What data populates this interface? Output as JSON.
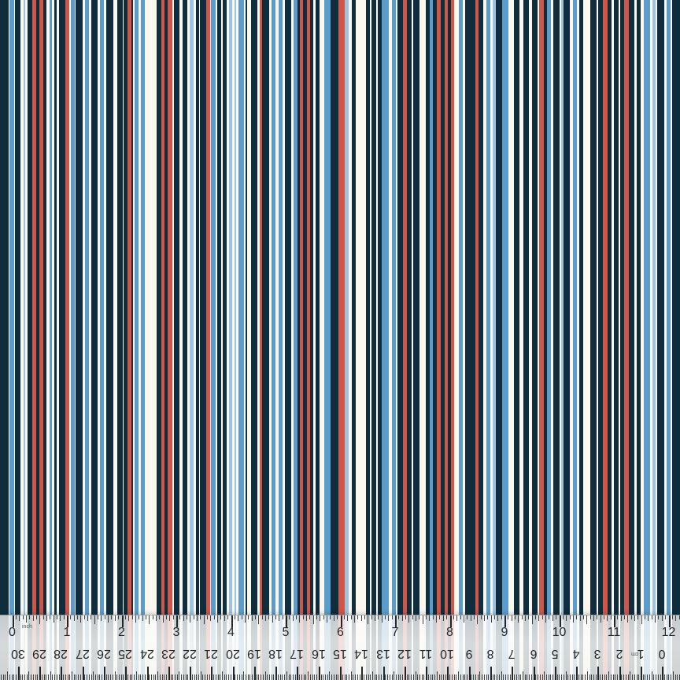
{
  "pattern": {
    "colors": {
      "n": "#0f2d3d",
      "b": "#5b9ccd",
      "l": "#9dc3e0",
      "r": "#d05648",
      "w": "#faf7ef"
    },
    "stripes": [
      [
        "n",
        11
      ],
      [
        "w",
        1
      ],
      [
        "b",
        6
      ],
      [
        "w",
        1
      ],
      [
        "n",
        7
      ],
      [
        "w",
        4
      ],
      [
        "l",
        2
      ],
      [
        "w",
        3
      ],
      [
        "n",
        6
      ],
      [
        "r",
        5
      ],
      [
        "n",
        4
      ],
      [
        "r",
        5
      ],
      [
        "n",
        4
      ],
      [
        "w",
        4
      ],
      [
        "b",
        3
      ],
      [
        "w",
        3
      ],
      [
        "n",
        3
      ],
      [
        "w",
        3
      ],
      [
        "n",
        8
      ],
      [
        "r",
        5
      ],
      [
        "w",
        2
      ],
      [
        "b",
        5
      ],
      [
        "w",
        1
      ],
      [
        "n",
        9
      ],
      [
        "w",
        3
      ],
      [
        "b",
        5
      ],
      [
        "w",
        3
      ],
      [
        "n",
        8
      ],
      [
        "w",
        3
      ],
      [
        "b",
        5
      ],
      [
        "w",
        3
      ],
      [
        "n",
        9
      ],
      [
        "w",
        5
      ],
      [
        "n",
        7
      ],
      [
        "w",
        1
      ],
      [
        "n",
        5
      ],
      [
        "r",
        5
      ],
      [
        "n",
        2
      ],
      [
        "w",
        2
      ],
      [
        "b",
        5
      ],
      [
        "w",
        3
      ],
      [
        "b",
        5
      ],
      [
        "w",
        15
      ],
      [
        "n",
        6
      ],
      [
        "r",
        4
      ],
      [
        "n",
        4
      ],
      [
        "r",
        6
      ],
      [
        "w",
        2
      ],
      [
        "n",
        7
      ],
      [
        "w",
        4
      ],
      [
        "n",
        6
      ],
      [
        "w",
        2
      ],
      [
        "w",
        1
      ],
      [
        "l",
        5
      ],
      [
        "w",
        3
      ],
      [
        "n",
        4
      ],
      [
        "w",
        1
      ],
      [
        "n",
        8
      ],
      [
        "r",
        5
      ],
      [
        "w",
        1
      ],
      [
        "b",
        6
      ],
      [
        "w",
        2
      ],
      [
        "n",
        5
      ],
      [
        "w",
        2
      ],
      [
        "n",
        5
      ],
      [
        "w",
        3
      ],
      [
        "l",
        4
      ],
      [
        "w",
        3
      ],
      [
        "l",
        2
      ],
      [
        "w",
        3
      ],
      [
        "b",
        7
      ],
      [
        "w",
        2
      ],
      [
        "n",
        2
      ],
      [
        "w",
        5
      ],
      [
        "n",
        8
      ],
      [
        "w",
        3
      ],
      [
        "r",
        3
      ],
      [
        "n",
        9
      ],
      [
        "w",
        3
      ],
      [
        "b",
        5
      ],
      [
        "w",
        4
      ],
      [
        "b",
        5
      ],
      [
        "w",
        1
      ],
      [
        "w",
        2
      ],
      [
        "n",
        8
      ],
      [
        "w",
        3
      ],
      [
        "b",
        5
      ],
      [
        "n",
        3
      ],
      [
        "r",
        4
      ],
      [
        "n",
        5
      ],
      [
        "r",
        4
      ],
      [
        "n",
        4
      ],
      [
        "w",
        3
      ],
      [
        "n",
        5
      ],
      [
        "w",
        6
      ],
      [
        "b",
        8
      ],
      [
        "n",
        10
      ],
      [
        "r",
        2
      ],
      [
        "r",
        6
      ],
      [
        "l",
        5
      ],
      [
        "w",
        4
      ],
      [
        "n",
        5
      ],
      [
        "w",
        13
      ],
      [
        "n",
        5
      ],
      [
        "w",
        2
      ],
      [
        "n",
        6
      ],
      [
        "w",
        2
      ],
      [
        "n",
        5
      ],
      [
        "b",
        9
      ],
      [
        "w",
        4
      ],
      [
        "b",
        5
      ],
      [
        "w",
        2
      ],
      [
        "n",
        7
      ],
      [
        "r",
        5
      ],
      [
        "n",
        6
      ],
      [
        "w",
        2
      ],
      [
        "n",
        3
      ],
      [
        "n",
        5
      ],
      [
        "w",
        8
      ],
      [
        "n",
        5
      ],
      [
        "b",
        4
      ],
      [
        "n",
        5
      ],
      [
        "r",
        5
      ],
      [
        "n",
        5
      ],
      [
        "r",
        4
      ],
      [
        "n",
        4
      ],
      [
        "r",
        4
      ],
      [
        "w",
        6
      ],
      [
        "b",
        5
      ],
      [
        "w",
        3
      ],
      [
        "n",
        9
      ],
      [
        "n",
        4
      ],
      [
        "r",
        4
      ],
      [
        "n",
        6
      ],
      [
        "w",
        4
      ],
      [
        "b",
        5
      ],
      [
        "w",
        3
      ],
      [
        "l",
        4
      ],
      [
        "n",
        8
      ],
      [
        "b",
        8
      ],
      [
        "w",
        7
      ],
      [
        "n",
        7
      ],
      [
        "w",
        5
      ],
      [
        "n",
        7
      ],
      [
        "w",
        4
      ],
      [
        "n",
        7
      ],
      [
        "w",
        2
      ],
      [
        "r",
        6
      ],
      [
        "n",
        4
      ],
      [
        "b",
        5
      ],
      [
        "w",
        3
      ],
      [
        "n",
        8
      ],
      [
        "w",
        2
      ],
      [
        "l",
        3
      ],
      [
        "n",
        8
      ],
      [
        "w",
        4
      ],
      [
        "b",
        5
      ],
      [
        "w",
        3
      ],
      [
        "n",
        5
      ],
      [
        "w",
        3
      ],
      [
        "w",
        6
      ],
      [
        "n",
        8
      ],
      [
        "w",
        2
      ],
      [
        "n",
        6
      ],
      [
        "r",
        6
      ],
      [
        "n",
        5
      ],
      [
        "w",
        3
      ],
      [
        "n",
        6
      ],
      [
        "w",
        2
      ],
      [
        "n",
        5
      ],
      [
        "r",
        6
      ],
      [
        "n",
        7
      ],
      [
        "w",
        3
      ],
      [
        "n",
        5
      ],
      [
        "w",
        4
      ],
      [
        "b",
        8
      ],
      [
        "w",
        3
      ],
      [
        "l",
        4
      ],
      [
        "w",
        2
      ],
      [
        "n",
        9
      ],
      [
        "w",
        3
      ],
      [
        "b",
        5
      ],
      [
        "w",
        2
      ],
      [
        "n",
        10
      ]
    ]
  },
  "ruler": {
    "inch_label": "inch",
    "cm_label": "cm",
    "inch_numbers": [
      "0",
      "1",
      "2",
      "3",
      "4",
      "5",
      "6",
      "7",
      "8",
      "9",
      "10",
      "11",
      "12"
    ],
    "cm_numbers": [
      "30",
      "29",
      "28",
      "27",
      "26",
      "25",
      "24",
      "23",
      "22",
      "21",
      "20",
      "19",
      "18",
      "17",
      "16",
      "15",
      "14",
      "13",
      "12",
      "11",
      "10",
      "9",
      "8",
      "7",
      "6",
      "5",
      "4",
      "3",
      "2",
      "1",
      "0"
    ],
    "geometry": {
      "inch_origin": 15.5,
      "inch_step": 69.5,
      "cm_origin": 841.3,
      "cm_step": 27.283,
      "height": 82
    }
  }
}
